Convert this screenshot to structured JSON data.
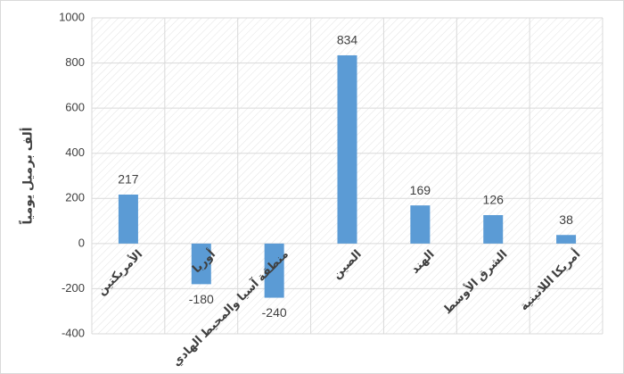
{
  "chart_data": {
    "type": "bar",
    "y_label": "ألف برميل يومياً",
    "categories": [
      "الأمريكتين",
      "أوربا",
      "منطقة آسيا والمحيط الهادي",
      "الصين",
      "الهند",
      "الشرق الأوسط",
      "أمريكا اللاتينية"
    ],
    "values": [
      217,
      -180,
      -240,
      834,
      169,
      126,
      38
    ],
    "color": "#5b9bd5",
    "ylim": [
      -400,
      1000
    ],
    "yticks": [
      -400,
      -200,
      0,
      200,
      400,
      600,
      800,
      1000
    ],
    "grid": true
  }
}
